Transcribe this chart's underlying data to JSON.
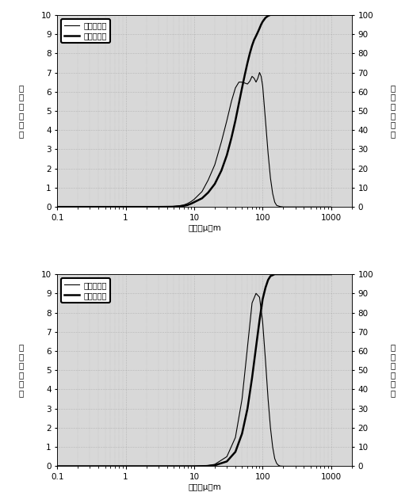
{
  "top_chart": {
    "legend_thin": "微分分布％",
    "legend_thick": "累积分布％",
    "ylabel_left": "微分分布／％",
    "ylabel_right": "累积分布／％",
    "xlabel": "粒径／μ　m",
    "xlim": [
      0.1,
      2000
    ],
    "ylim_left": [
      0,
      10
    ],
    "ylim_right": [
      0,
      100
    ],
    "yticks_left": [
      0,
      1,
      2,
      3,
      4,
      5,
      6,
      7,
      8,
      9,
      10
    ],
    "yticks_right": [
      0,
      10,
      20,
      30,
      40,
      50,
      60,
      70,
      80,
      90,
      100
    ],
    "diff_x": [
      0.1,
      1.0,
      2.0,
      3.0,
      4.0,
      5.0,
      6.0,
      7.0,
      8.0,
      9.0,
      10.0,
      13,
      16,
      20,
      25,
      30,
      35,
      40,
      45,
      50,
      55,
      60,
      65,
      70,
      75,
      80,
      85,
      90,
      95,
      100,
      110,
      120,
      130,
      140,
      150,
      160,
      180,
      200,
      300,
      500,
      1000
    ],
    "diff_y": [
      0,
      0,
      0,
      0,
      0.01,
      0.03,
      0.06,
      0.1,
      0.18,
      0.28,
      0.4,
      0.8,
      1.4,
      2.2,
      3.4,
      4.5,
      5.5,
      6.2,
      6.5,
      6.5,
      6.45,
      6.4,
      6.55,
      6.8,
      6.7,
      6.5,
      6.7,
      7.0,
      6.8,
      6.3,
      4.5,
      2.8,
      1.5,
      0.7,
      0.25,
      0.08,
      0.02,
      0,
      0,
      0,
      0
    ],
    "cumul_x": [
      0.1,
      1.0,
      2.0,
      3.0,
      4.0,
      5.0,
      6.0,
      7.0,
      8.0,
      9.0,
      10.0,
      13,
      16,
      20,
      25,
      30,
      35,
      40,
      45,
      50,
      55,
      60,
      65,
      70,
      75,
      80,
      85,
      90,
      95,
      100,
      110,
      120,
      130,
      140,
      150,
      200,
      500,
      1000
    ],
    "cumul_y": [
      0,
      0,
      0,
      0,
      0.05,
      0.1,
      0.3,
      0.6,
      1.0,
      1.7,
      2.5,
      4.5,
      7.5,
      12,
      19,
      27,
      36,
      45,
      54,
      62,
      69,
      75,
      80,
      84,
      87,
      89,
      91,
      93,
      95,
      96.5,
      98.5,
      99.5,
      100,
      100,
      100,
      100,
      100,
      100
    ]
  },
  "bottom_chart": {
    "legend_thin": "微分分布％",
    "legend_thick": "累积分布％",
    "ylabel_left": "微分分布／％",
    "ylabel_right": "累积分布／％",
    "xlabel": "粒径／μ　m",
    "xlim": [
      0.1,
      2000
    ],
    "ylim_left": [
      0,
      10
    ],
    "ylim_right": [
      0,
      100
    ],
    "yticks_left": [
      0,
      1,
      2,
      3,
      4,
      5,
      6,
      7,
      8,
      9,
      10
    ],
    "yticks_right": [
      0,
      10,
      20,
      30,
      40,
      50,
      60,
      70,
      80,
      90,
      100
    ],
    "diff_x": [
      0.1,
      1,
      2,
      3,
      4,
      5,
      7,
      10,
      15,
      20,
      30,
      40,
      50,
      60,
      70,
      80,
      90,
      100,
      110,
      120,
      130,
      140,
      150,
      160,
      170,
      180,
      200,
      250,
      300,
      500,
      1000
    ],
    "diff_y": [
      0,
      0,
      0,
      0,
      0,
      0,
      0,
      0,
      0.02,
      0.1,
      0.5,
      1.5,
      3.5,
      6.2,
      8.5,
      9.0,
      8.8,
      7.5,
      5.5,
      3.5,
      2.0,
      1.0,
      0.4,
      0.15,
      0.05,
      0.01,
      0,
      0,
      0,
      0,
      0
    ],
    "cumul_x": [
      0.1,
      1,
      2,
      3,
      4,
      5,
      7,
      10,
      15,
      20,
      30,
      40,
      50,
      60,
      70,
      80,
      90,
      100,
      110,
      120,
      130,
      140,
      150,
      160,
      170,
      180,
      200,
      250,
      300,
      500,
      1000
    ],
    "cumul_y": [
      0,
      0,
      0,
      0,
      0,
      0,
      0,
      0,
      0.1,
      0.5,
      2.5,
      7.5,
      17,
      30,
      46,
      62,
      76,
      87,
      93,
      97,
      99,
      99.5,
      100,
      100,
      100,
      100,
      100,
      100,
      100,
      100,
      100
    ]
  },
  "line_color": "#000000",
  "grid_color": "#999999",
  "bg_color": "#d8d8d8",
  "font_size": 7.5,
  "legend_fontsize": 7
}
